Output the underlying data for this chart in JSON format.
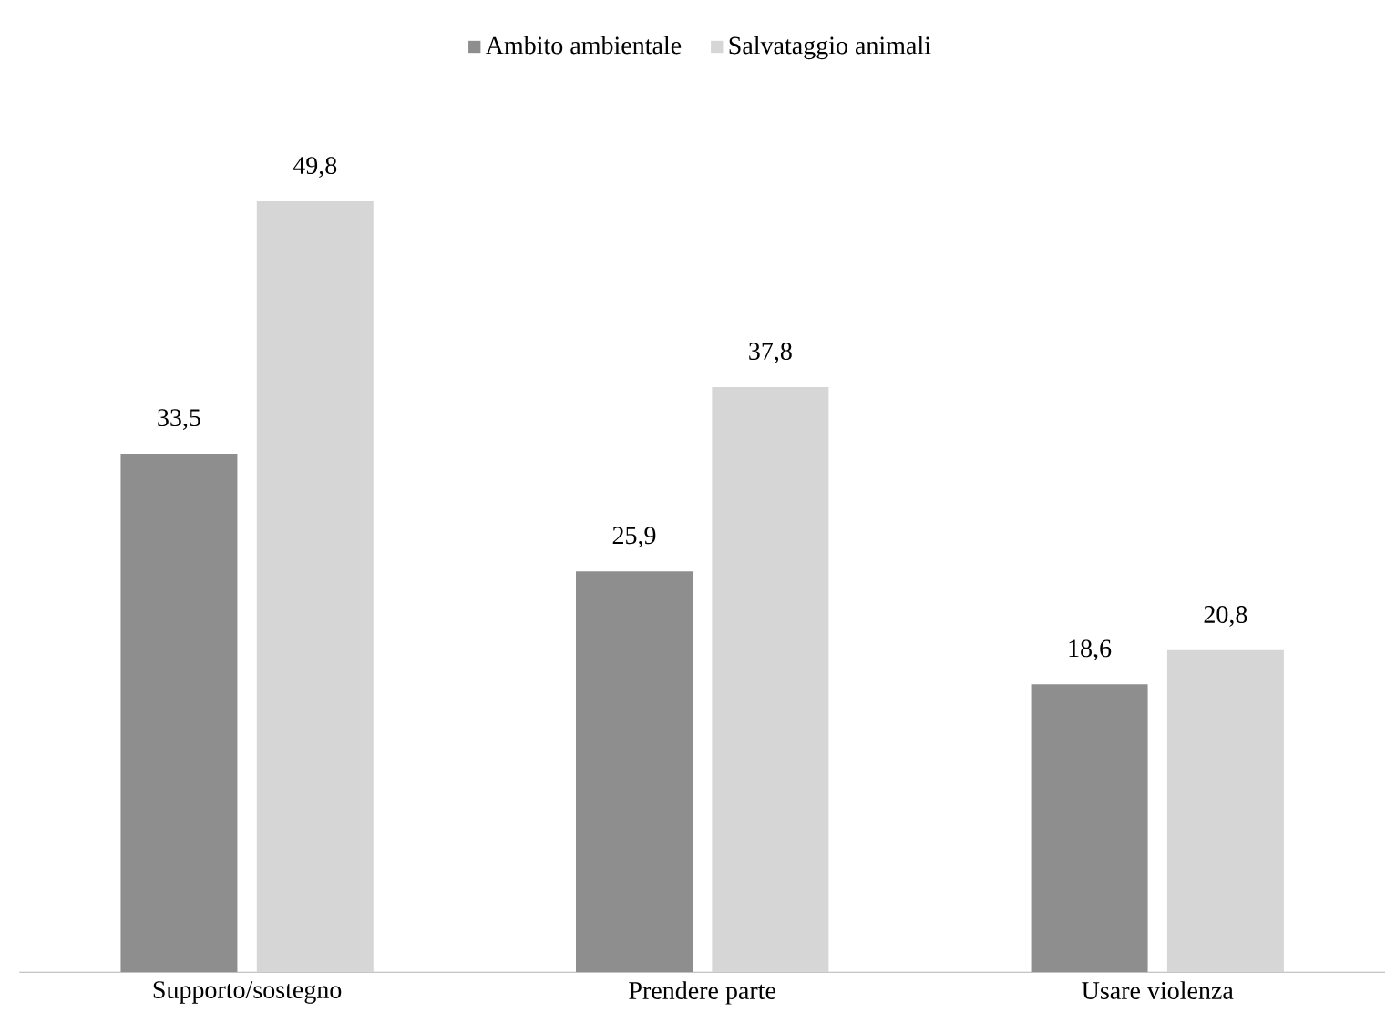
{
  "chart_data": {
    "type": "bar",
    "categories": [
      "Supporto/sostegno",
      "Prendere parte",
      "Usare violenza"
    ],
    "series": [
      {
        "name": "Ambito ambientale",
        "color": "#8e8e8e",
        "values": [
          33.5,
          25.9,
          18.6
        ],
        "value_labels": [
          "33,5",
          "25,9",
          "18,6"
        ]
      },
      {
        "name": "Salvataggio animali",
        "color": "#d6d6d6",
        "values": [
          49.8,
          37.8,
          20.8
        ],
        "value_labels": [
          "49,8",
          "37,8",
          "20,8"
        ]
      }
    ],
    "legend": "top"
  }
}
